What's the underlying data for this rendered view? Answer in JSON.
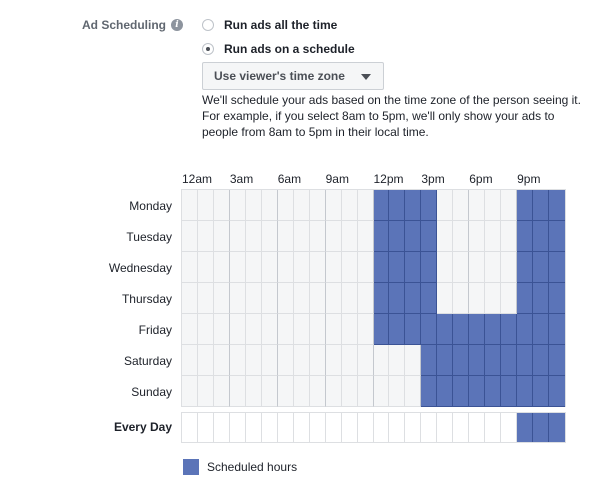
{
  "section": {
    "label": "Ad Scheduling",
    "info_icon": "info-icon"
  },
  "options": [
    {
      "label": "Run ads all the time",
      "checked": false
    },
    {
      "label": "Run ads on a schedule",
      "checked": true
    }
  ],
  "timezone_select": {
    "value": "Use viewer's time zone"
  },
  "description": {
    "line1": "We'll schedule your ads based on the time zone of the person seeing it.",
    "line2": "For example, if you select 8am to 5pm, we'll only show your ads to people from 8am to 5pm in their local time."
  },
  "hour_labels": [
    "12am",
    "3am",
    "6am",
    "9am",
    "12pm",
    "3pm",
    "6pm",
    "9pm"
  ],
  "days": [
    {
      "label": "Monday",
      "scheduled_hours": [
        12,
        13,
        14,
        15,
        21,
        22,
        23
      ]
    },
    {
      "label": "Tuesday",
      "scheduled_hours": [
        12,
        13,
        14,
        15,
        21,
        22,
        23
      ]
    },
    {
      "label": "Wednesday",
      "scheduled_hours": [
        12,
        13,
        14,
        15,
        21,
        22,
        23
      ]
    },
    {
      "label": "Thursday",
      "scheduled_hours": [
        12,
        13,
        14,
        15,
        21,
        22,
        23
      ]
    },
    {
      "label": "Friday",
      "scheduled_hours": [
        12,
        13,
        14,
        15,
        16,
        17,
        18,
        19,
        20,
        21,
        22,
        23
      ]
    },
    {
      "label": "Saturday",
      "scheduled_hours": [
        15,
        16,
        17,
        18,
        19,
        20,
        21,
        22,
        23
      ]
    },
    {
      "label": "Sunday",
      "scheduled_hours": [
        15,
        16,
        17,
        18,
        19,
        20,
        21,
        22,
        23
      ]
    }
  ],
  "every_day": {
    "label": "Every Day",
    "scheduled_hours": [
      21,
      22,
      23
    ]
  },
  "legend": {
    "label": "Scheduled hours"
  },
  "colors": {
    "scheduled": "#5b74b8",
    "scheduled_line": "#3b5395",
    "empty": "#f5f6f7",
    "empty_line": "#dddfe2",
    "group_line": "#c4c8ce"
  }
}
